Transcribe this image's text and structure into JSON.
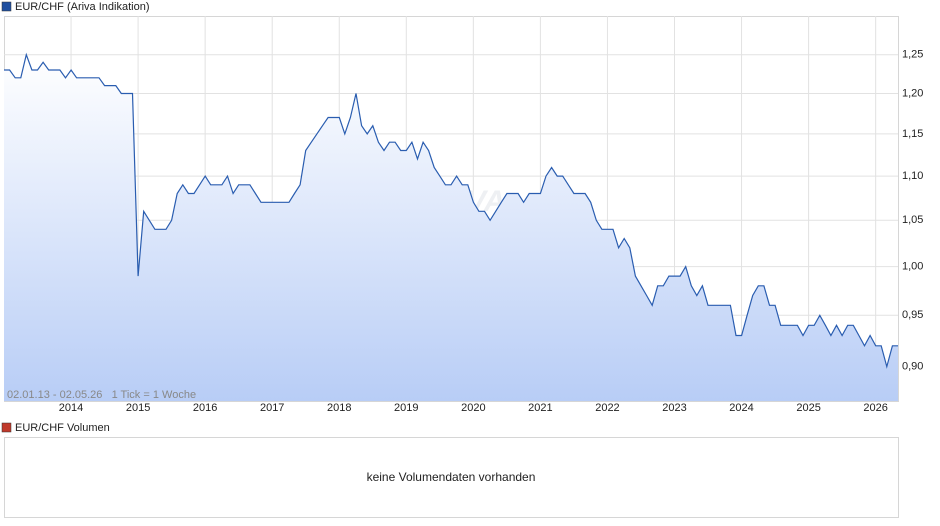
{
  "chart_data": {
    "type": "line",
    "legend": "EUR/CHF (Ariva Indikation)",
    "annotation": "02.01.13 - 02.05.26   1 Tick = 1 Woche",
    "watermark": "ARIVA",
    "volume_legend": "EUR/CHF Volumen",
    "volume_note": "keine Volumendaten vorhanden",
    "log_scale": true,
    "grid": true,
    "xlim": [
      "2013-01",
      "2026-05"
    ],
    "ylim": [
      0.868,
      1.302
    ],
    "xticks": [
      2014,
      2015,
      2016,
      2017,
      2018,
      2019,
      2020,
      2021,
      2022,
      2023,
      2024,
      2025,
      2026
    ],
    "yticks": [
      {
        "value": 0.9,
        "label": "0,90"
      },
      {
        "value": 0.95,
        "label": "0,95"
      },
      {
        "value": 1.0,
        "label": "1,00"
      },
      {
        "value": 1.05,
        "label": "1,05"
      },
      {
        "value": 1.1,
        "label": "1,10"
      },
      {
        "value": 1.15,
        "label": "1,15"
      },
      {
        "value": 1.2,
        "label": "1,20"
      },
      {
        "value": 1.25,
        "label": "1,25"
      }
    ],
    "x": [
      "2013-01",
      "2013-02",
      "2013-03",
      "2013-04",
      "2013-05",
      "2013-06",
      "2013-07",
      "2013-08",
      "2013-09",
      "2013-10",
      "2013-11",
      "2013-12",
      "2014-01",
      "2014-02",
      "2014-03",
      "2014-04",
      "2014-05",
      "2014-06",
      "2014-07",
      "2014-08",
      "2014-09",
      "2014-10",
      "2014-11",
      "2014-12",
      "2015-01",
      "2015-02",
      "2015-03",
      "2015-04",
      "2015-05",
      "2015-06",
      "2015-07",
      "2015-08",
      "2015-09",
      "2015-10",
      "2015-11",
      "2015-12",
      "2016-01",
      "2016-02",
      "2016-03",
      "2016-04",
      "2016-05",
      "2016-06",
      "2016-07",
      "2016-08",
      "2016-09",
      "2016-10",
      "2016-11",
      "2016-12",
      "2017-01",
      "2017-02",
      "2017-03",
      "2017-04",
      "2017-05",
      "2017-06",
      "2017-07",
      "2017-08",
      "2017-09",
      "2017-10",
      "2017-11",
      "2017-12",
      "2018-01",
      "2018-02",
      "2018-03",
      "2018-04",
      "2018-05",
      "2018-06",
      "2018-07",
      "2018-08",
      "2018-09",
      "2018-10",
      "2018-11",
      "2018-12",
      "2019-01",
      "2019-02",
      "2019-03",
      "2019-04",
      "2019-05",
      "2019-06",
      "2019-07",
      "2019-08",
      "2019-09",
      "2019-10",
      "2019-11",
      "2019-12",
      "2020-01",
      "2020-02",
      "2020-03",
      "2020-04",
      "2020-05",
      "2020-06",
      "2020-07",
      "2020-08",
      "2020-09",
      "2020-10",
      "2020-11",
      "2020-12",
      "2021-01",
      "2021-02",
      "2021-03",
      "2021-04",
      "2021-05",
      "2021-06",
      "2021-07",
      "2021-08",
      "2021-09",
      "2021-10",
      "2021-11",
      "2021-12",
      "2022-01",
      "2022-02",
      "2022-03",
      "2022-04",
      "2022-05",
      "2022-06",
      "2022-07",
      "2022-08",
      "2022-09",
      "2022-10",
      "2022-11",
      "2022-12",
      "2023-01",
      "2023-02",
      "2023-03",
      "2023-04",
      "2023-05",
      "2023-06",
      "2023-07",
      "2023-08",
      "2023-09",
      "2023-10",
      "2023-11",
      "2023-12",
      "2024-01",
      "2024-02",
      "2024-03",
      "2024-04",
      "2024-05",
      "2024-06",
      "2024-07",
      "2024-08",
      "2024-09",
      "2024-10",
      "2024-11",
      "2024-12",
      "2025-01",
      "2025-02",
      "2025-03",
      "2025-04",
      "2025-05",
      "2025-06",
      "2025-07",
      "2025-08",
      "2025-09",
      "2025-10",
      "2025-11",
      "2025-12",
      "2026-01",
      "2026-02",
      "2026-03",
      "2026-04",
      "2026-05"
    ],
    "series": [
      {
        "name": "EUR/CHF",
        "color": "#2a5db0",
        "values": [
          1.23,
          1.23,
          1.22,
          1.22,
          1.25,
          1.23,
          1.23,
          1.24,
          1.23,
          1.23,
          1.23,
          1.22,
          1.23,
          1.22,
          1.22,
          1.22,
          1.22,
          1.22,
          1.21,
          1.21,
          1.21,
          1.2,
          1.2,
          1.2,
          0.99,
          1.06,
          1.05,
          1.04,
          1.04,
          1.04,
          1.05,
          1.08,
          1.09,
          1.08,
          1.08,
          1.09,
          1.1,
          1.09,
          1.09,
          1.09,
          1.1,
          1.08,
          1.09,
          1.09,
          1.09,
          1.08,
          1.07,
          1.07,
          1.07,
          1.07,
          1.07,
          1.07,
          1.08,
          1.09,
          1.13,
          1.14,
          1.15,
          1.16,
          1.17,
          1.17,
          1.17,
          1.15,
          1.17,
          1.2,
          1.16,
          1.15,
          1.16,
          1.14,
          1.13,
          1.14,
          1.14,
          1.13,
          1.13,
          1.14,
          1.12,
          1.14,
          1.13,
          1.11,
          1.1,
          1.09,
          1.09,
          1.1,
          1.09,
          1.09,
          1.07,
          1.06,
          1.06,
          1.05,
          1.06,
          1.07,
          1.08,
          1.08,
          1.08,
          1.07,
          1.08,
          1.08,
          1.08,
          1.1,
          1.11,
          1.1,
          1.1,
          1.09,
          1.08,
          1.08,
          1.08,
          1.07,
          1.05,
          1.04,
          1.04,
          1.04,
          1.02,
          1.03,
          1.02,
          0.99,
          0.98,
          0.97,
          0.96,
          0.98,
          0.98,
          0.99,
          0.99,
          0.99,
          1.0,
          0.98,
          0.97,
          0.98,
          0.96,
          0.96,
          0.96,
          0.96,
          0.96,
          0.93,
          0.93,
          0.95,
          0.97,
          0.98,
          0.98,
          0.96,
          0.96,
          0.94,
          0.94,
          0.94,
          0.94,
          0.93,
          0.94,
          0.94,
          0.95,
          0.94,
          0.93,
          0.94,
          0.93,
          0.94,
          0.94,
          0.93,
          0.92,
          0.93,
          0.92,
          0.92,
          0.9,
          0.92,
          0.92
        ]
      }
    ]
  }
}
